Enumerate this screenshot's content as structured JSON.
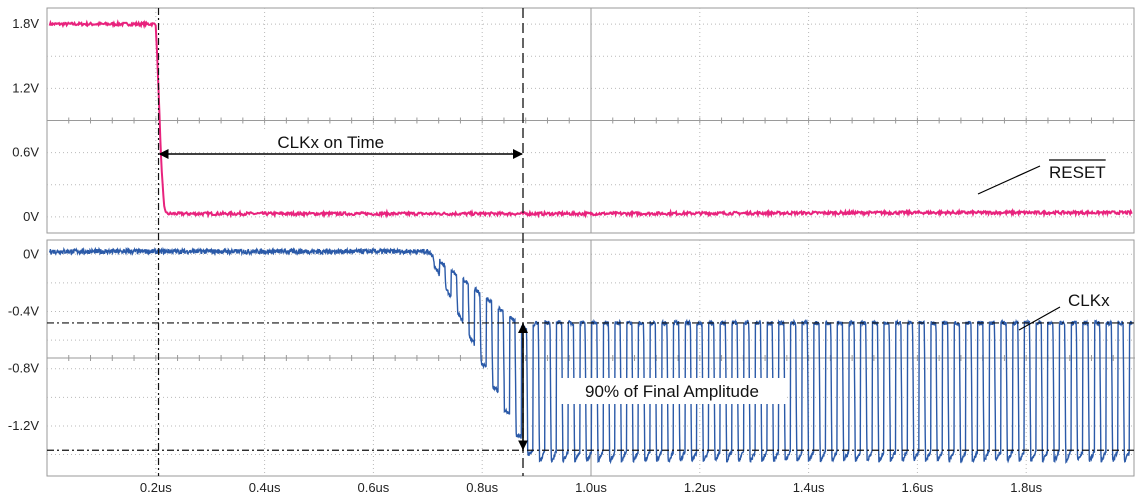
{
  "chart_data": [
    {
      "type": "line",
      "panel": "top",
      "xlim": [
        0,
        2.0
      ],
      "ylim": [
        -0.15,
        1.95
      ],
      "x_unit": "us",
      "y_ticks": [
        {
          "value": 1.8,
          "label": "1.8V"
        },
        {
          "value": 1.2,
          "label": "1.2V"
        },
        {
          "value": 0.6,
          "label": "0.6V"
        },
        {
          "value": 0.0,
          "label": "0V"
        }
      ],
      "series": [
        {
          "name": "RESET",
          "color": "#e8237d",
          "points": [
            [
              0.0,
              1.8
            ],
            [
              0.2,
              1.8
            ],
            [
              0.205,
              1.2
            ],
            [
              0.21,
              0.5
            ],
            [
              0.215,
              0.1
            ],
            [
              0.22,
              0.03
            ],
            [
              1.0,
              0.03
            ],
            [
              1.6,
              0.04
            ],
            [
              2.0,
              0.04
            ]
          ]
        }
      ],
      "grid": true
    },
    {
      "type": "line",
      "panel": "bottom",
      "xlim": [
        0,
        2.0
      ],
      "ylim": [
        -1.55,
        0.1
      ],
      "x_unit": "us",
      "x_ticks": [
        {
          "value": 0.2,
          "label": "0.2us"
        },
        {
          "value": 0.4,
          "label": "0.4us"
        },
        {
          "value": 0.6,
          "label": "0.6us"
        },
        {
          "value": 0.8,
          "label": "0.8us"
        },
        {
          "value": 1.0,
          "label": "1.0us"
        },
        {
          "value": 1.2,
          "label": "1.2us"
        },
        {
          "value": 1.4,
          "label": "1.4us"
        },
        {
          "value": 1.6,
          "label": "1.6us"
        },
        {
          "value": 1.8,
          "label": "1.8us"
        }
      ],
      "y_ticks": [
        {
          "value": 0.0,
          "label": "0V"
        },
        {
          "value": -0.4,
          "label": "-0.4V"
        },
        {
          "value": -0.8,
          "label": "-0.8V"
        },
        {
          "value": -1.2,
          "label": "-1.2V"
        }
      ],
      "series": [
        {
          "name": "CLKx",
          "color": "#2b5aa8",
          "onset_us": 0.7,
          "final_high_v": -0.48,
          "final_low_v": -1.45,
          "period_us": 0.0215
        }
      ],
      "grid": true
    }
  ],
  "annotations": {
    "reset_label": "RESET",
    "clk_label": "CLKx",
    "on_time_label": "CLKx on Time",
    "amplitude_label": "90% of Final Amplitude",
    "on_time_start_us": 0.205,
    "on_time_end_us": 0.875,
    "amp_top_v": -0.48,
    "amp_bottom_v": -1.37
  }
}
